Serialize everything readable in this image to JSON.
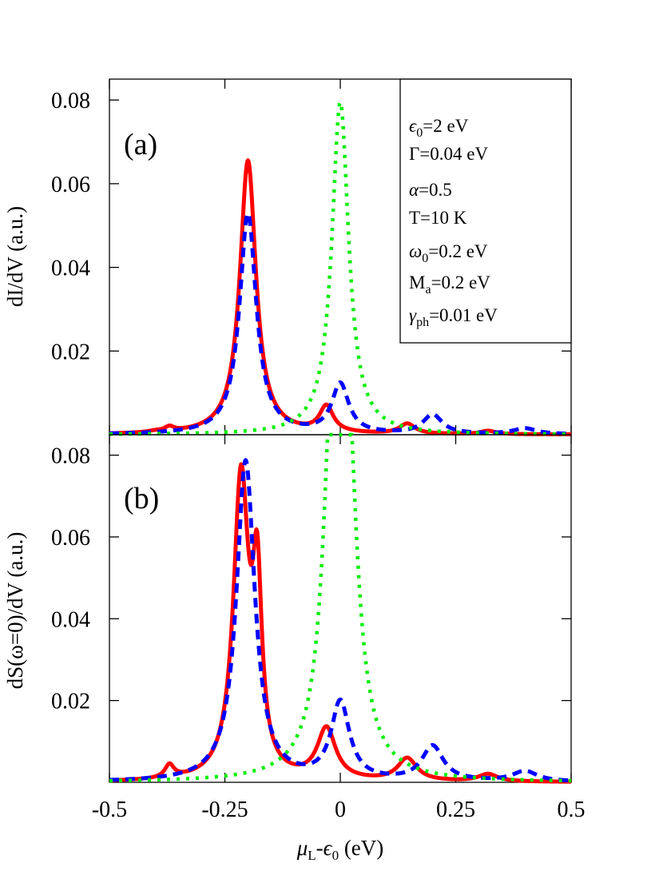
{
  "chart_data": [
    {
      "type": "line",
      "panel_label": "(a)",
      "ylabel": "dI/dV (a.u.)",
      "xlim": [
        -0.5,
        0.5
      ],
      "ylim": [
        0,
        0.085
      ],
      "yticks": [
        0.02,
        0.04,
        0.06,
        0.08
      ],
      "ytick_labels": [
        "0.02",
        "0.04",
        "0.06",
        "0.08"
      ],
      "parameters": [
        "ε0=2 eV",
        "Γ=0.04 eV",
        "α=0.5",
        "T=10 K",
        "ω0=0.2 eV",
        "Ma=0.2 eV",
        "γph=0.01 eV"
      ],
      "series": [
        {
          "style": "solid",
          "color": "#ff0000",
          "peaks": [
            {
              "x": -0.4,
              "h": 0.0003,
              "w": 0.02
            },
            {
              "x": -0.37,
              "h": 0.0011,
              "w": 0.012
            },
            {
              "x": -0.2,
              "h": 0.0655,
              "w": 0.021
            },
            {
              "x": -0.03,
              "h": 0.0062,
              "w": 0.018
            },
            {
              "x": 0.145,
              "h": 0.0024,
              "w": 0.02
            },
            {
              "x": 0.32,
              "h": 0.0008,
              "w": 0.02
            }
          ]
        },
        {
          "style": "dashed",
          "color": "#0000ff",
          "peaks": [
            {
              "x": -0.2,
              "h": 0.0528,
              "w": 0.022
            },
            {
              "x": 0.0,
              "h": 0.0118,
              "w": 0.022
            },
            {
              "x": 0.2,
              "h": 0.0046,
              "w": 0.025
            },
            {
              "x": 0.4,
              "h": 0.0014,
              "w": 0.03
            }
          ]
        },
        {
          "style": "dotted",
          "color": "#00ee00",
          "peaks": [
            {
              "x": 0.0,
              "h": 0.0795,
              "w": 0.022
            }
          ]
        }
      ]
    },
    {
      "type": "line",
      "panel_label": "(b)",
      "ylabel": "dS(ω=0)/dV (a.u.)",
      "xlabel": "μL-ε0 (eV)",
      "xlim": [
        -0.5,
        0.5
      ],
      "ylim": [
        0,
        0.085
      ],
      "xticks": [
        -0.5,
        -0.25,
        0,
        0.25,
        0.5
      ],
      "xtick_labels": [
        "-0.5",
        "-0.25",
        "0",
        "0.25",
        "0.5"
      ],
      "yticks": [
        0.02,
        0.04,
        0.06,
        0.08
      ],
      "ytick_labels": [
        "0.02",
        "0.04",
        "0.06",
        "0.08"
      ],
      "series": [
        {
          "style": "solid",
          "color": "#ff0000",
          "peaks": [
            {
              "x": -0.37,
              "h": 0.0032,
              "w": 0.012
            },
            {
              "x": -0.215,
              "h": 0.073,
              "w": 0.02
            },
            {
              "x": -0.18,
              "h": 0.043,
              "w": 0.012
            },
            {
              "x": -0.03,
              "h": 0.0125,
              "w": 0.024
            },
            {
              "x": 0.145,
              "h": 0.0055,
              "w": 0.025
            },
            {
              "x": 0.32,
              "h": 0.0018,
              "w": 0.025
            }
          ]
        },
        {
          "style": "dashed",
          "color": "#0000ff",
          "peaks": [
            {
              "x": -0.205,
              "h": 0.0785,
              "w": 0.024
            },
            {
              "x": 0.0,
              "h": 0.019,
              "w": 0.024
            },
            {
              "x": 0.2,
              "h": 0.0085,
              "w": 0.028
            },
            {
              "x": 0.4,
              "h": 0.0025,
              "w": 0.032
            }
          ]
        },
        {
          "style": "dotted",
          "color": "#00ee00",
          "peaks": [
            {
              "x": -0.015,
              "h": 0.0835,
              "w": 0.025
            },
            {
              "x": 0.015,
              "h": 0.072,
              "w": 0.025
            }
          ]
        }
      ]
    }
  ]
}
